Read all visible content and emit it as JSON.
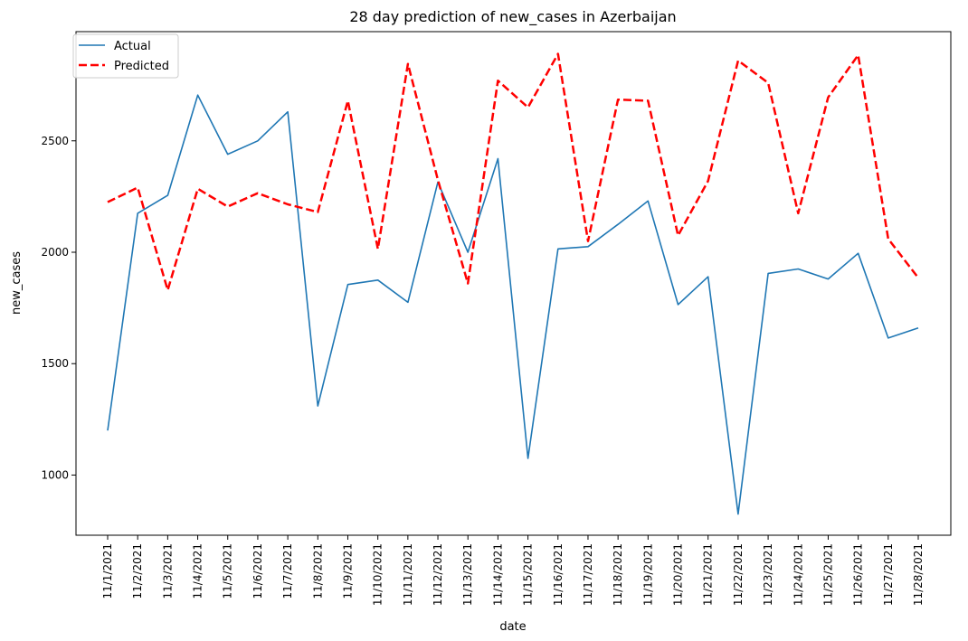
{
  "chart_data": {
    "type": "line",
    "title": "28 day prediction of new_cases in Azerbaijan",
    "xlabel": "date",
    "ylabel": "new_cases",
    "x": [
      "11/1/2021",
      "11/2/2021",
      "11/3/2021",
      "11/4/2021",
      "11/5/2021",
      "11/6/2021",
      "11/7/2021",
      "11/8/2021",
      "11/9/2021",
      "11/10/2021",
      "11/11/2021",
      "11/12/2021",
      "11/13/2021",
      "11/14/2021",
      "11/15/2021",
      "11/16/2021",
      "11/17/2021",
      "11/18/2021",
      "11/19/2021",
      "11/20/2021",
      "11/21/2021",
      "11/22/2021",
      "11/23/2021",
      "11/24/2021",
      "11/25/2021",
      "11/26/2021",
      "11/27/2021",
      "11/28/2021"
    ],
    "ylim": [
      730,
      2990
    ],
    "yticks": [
      1000,
      1500,
      2000,
      2500
    ],
    "legend_position": "top-left",
    "grid": false,
    "series": [
      {
        "name": "Actual",
        "color": "#1f77b4",
        "style": "solid",
        "values": [
          1200,
          2175,
          2255,
          2705,
          2440,
          2500,
          2630,
          1310,
          1855,
          1875,
          1775,
          2315,
          2000,
          2420,
          1075,
          2015,
          2025,
          2125,
          2230,
          1765,
          1890,
          825,
          1905,
          1925,
          1880,
          1995,
          1615,
          1660
        ]
      },
      {
        "name": "Predicted",
        "color": "#ff0000",
        "style": "dashed",
        "values": [
          2225,
          2290,
          1830,
          2285,
          2205,
          2265,
          2215,
          2180,
          2680,
          2015,
          2845,
          2325,
          1860,
          2770,
          2650,
          2890,
          2050,
          2685,
          2680,
          2075,
          2320,
          2860,
          2760,
          2175,
          2695,
          2885,
          2060,
          1885
        ]
      }
    ]
  }
}
